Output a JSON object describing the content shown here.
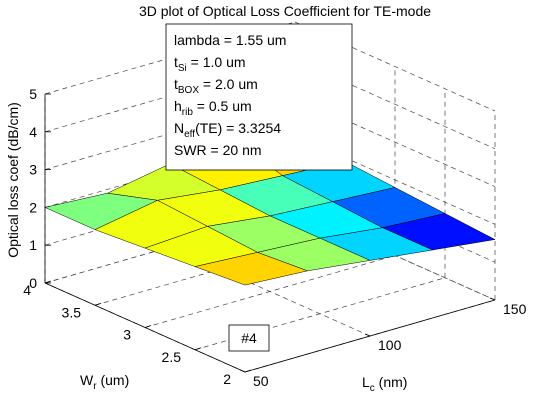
{
  "chart_data": {
    "type": "surface",
    "title": "3D plot of Optical Loss Coefficient for TE-mode",
    "xlabel": {
      "base": "L",
      "sub": "c",
      "rest": " (nm)"
    },
    "ylabel": {
      "base": "W",
      "sub": "r",
      "rest": " (um)"
    },
    "zlabel": "Optical loss coef (dB/cm)",
    "x": [
      50,
      75,
      100,
      125,
      150
    ],
    "y": [
      2,
      2.5,
      3,
      3.5,
      4
    ],
    "z": [
      [
        2.3,
        2.2,
        2.0,
        1.8,
        1.6
      ],
      [
        2.2,
        2.1,
        2.0,
        1.8,
        1.7
      ],
      [
        2.1,
        2.2,
        2.0,
        1.9,
        1.8
      ],
      [
        2.0,
        2.3,
        2.1,
        2.0,
        1.9
      ],
      [
        2.0,
        1.9,
        2.2,
        2.4,
        2.5
      ]
    ],
    "xlim": [
      50,
      150
    ],
    "xticks": [
      50,
      100,
      150
    ],
    "ylim": [
      2,
      4
    ],
    "yticks": [
      2,
      2.5,
      3,
      3.5,
      4
    ],
    "zlim": [
      0,
      5
    ],
    "zticks": [
      0,
      1,
      2,
      3,
      4,
      5
    ],
    "colormap": "jet",
    "grid": true,
    "annotation": [
      {
        "base": "lambda = 1.55 um"
      },
      {
        "base": "t",
        "sub": "Si",
        "rest": " = 1.0 um"
      },
      {
        "base": "t",
        "sub": "BOX",
        "rest": " = 2.0 um"
      },
      {
        "base": "h",
        "sub": "rib",
        "rest": " = 0.5 um"
      },
      {
        "base": "N",
        "sub": "eff",
        "rest": "(TE) = 3.3254"
      },
      {
        "base": "SWR = 20 nm"
      }
    ],
    "box_label": "#4"
  }
}
